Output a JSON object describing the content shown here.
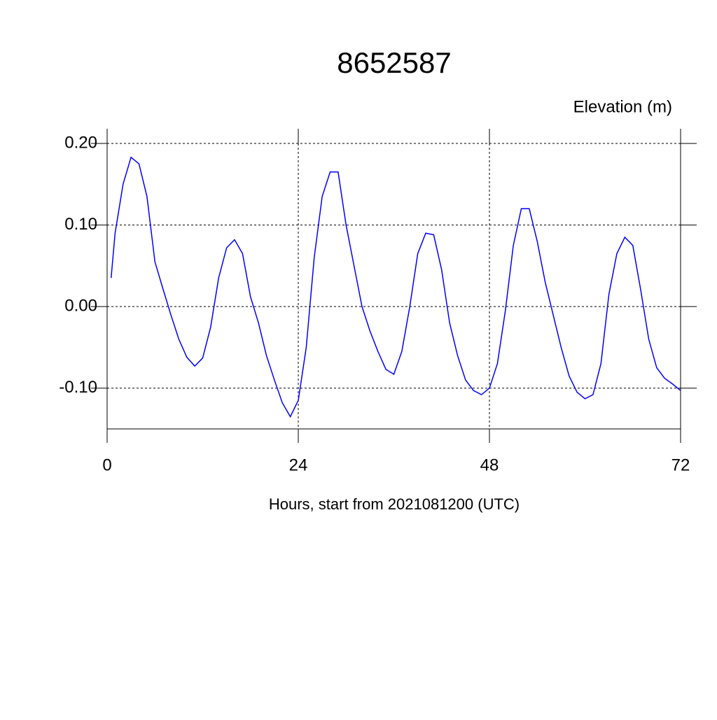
{
  "chart_data": {
    "type": "line",
    "title": "8652587",
    "ylabel": "Elevation (m)",
    "xlabel": "Hours, start from 2021081200 (UTC)",
    "x": [
      0.5,
      1,
      2,
      3,
      4,
      5,
      6,
      7,
      8,
      9,
      10,
      11,
      12,
      13,
      14,
      15,
      16,
      17,
      18,
      19,
      20,
      21,
      22,
      23,
      24,
      25,
      26,
      27,
      28,
      29,
      30,
      31,
      32,
      33,
      34,
      35,
      36,
      37,
      38,
      39,
      40,
      41,
      42,
      43,
      44,
      45,
      46,
      47,
      48,
      49,
      50,
      51,
      52,
      53,
      54,
      55,
      56,
      57,
      58,
      59,
      60,
      61,
      62,
      63,
      64,
      65,
      66,
      67,
      68,
      69,
      70,
      71,
      72
    ],
    "series": [
      {
        "name": null,
        "color": "#0000ff",
        "values": [
          0.035,
          0.09,
          0.15,
          0.183,
          0.175,
          0.135,
          0.055,
          0.022,
          -0.01,
          -0.04,
          -0.062,
          -0.073,
          -0.063,
          -0.025,
          0.035,
          0.072,
          0.082,
          0.065,
          0.012,
          -0.02,
          -0.06,
          -0.09,
          -0.118,
          -0.135,
          -0.115,
          -0.05,
          0.06,
          0.135,
          0.165,
          0.165,
          0.1,
          0.05,
          0.0,
          -0.03,
          -0.055,
          -0.077,
          -0.083,
          -0.055,
          0.0,
          0.065,
          0.09,
          0.088,
          0.045,
          -0.02,
          -0.06,
          -0.09,
          -0.103,
          -0.108,
          -0.1,
          -0.07,
          -0.005,
          0.075,
          0.12,
          0.12,
          0.08,
          0.03,
          -0.01,
          -0.05,
          -0.085,
          -0.105,
          -0.113,
          -0.108,
          -0.07,
          0.015,
          0.065,
          0.085,
          0.075,
          0.02,
          -0.04,
          -0.075,
          -0.088,
          -0.095,
          -0.103
        ]
      }
    ],
    "xlim": [
      0,
      72
    ],
    "xticks": [
      0,
      24,
      48,
      72
    ],
    "ylim": [
      -0.15,
      0.2
    ],
    "yticks": [
      {
        "value": -0.1,
        "label": "-0.10"
      },
      {
        "value": 0,
        "label": "0.00"
      },
      {
        "value": 0.1,
        "label": "0.10"
      },
      {
        "value": 0.2,
        "label": "0.20"
      }
    ],
    "grid": true
  }
}
